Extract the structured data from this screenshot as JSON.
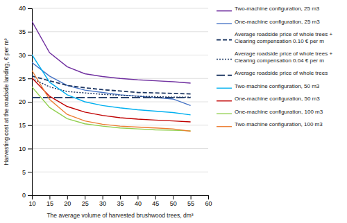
{
  "chart_data": {
    "type": "line",
    "xlabel": "The average volume of harvested brushwood trees, dm³",
    "ylabel": "Harvesting cost at the roadside landing, € per m³",
    "x": [
      10,
      15,
      20,
      25,
      30,
      35,
      40,
      45,
      50,
      55
    ],
    "series": [
      {
        "name": "Two-machine configuration, 25 m3",
        "color": "#7030A0",
        "line_style": "solid",
        "values": [
          37.2,
          30.5,
          27.5,
          26.0,
          25.4,
          25.0,
          24.7,
          24.5,
          24.3,
          24.0
        ]
      },
      {
        "name": "One-machine configuration, 25 m3",
        "color": "#4472C4",
        "line_style": "solid",
        "values": [
          28.4,
          25.5,
          23.5,
          22.5,
          22.0,
          21.5,
          21.2,
          20.9,
          20.6,
          19.2
        ]
      },
      {
        "name": "Average roadside price of whole trees +\nClearing compensation 0.10 € per m",
        "color": "#1F3864",
        "line_style": "dashed",
        "values": [
          25.5,
          24.5,
          23.5,
          23.0,
          22.6,
          22.3,
          22.0,
          21.9,
          21.8,
          21.7
        ]
      },
      {
        "name": "Average roadside price of whole trees +\nClearing compensation 0.04 € per m",
        "color": "#1F3864",
        "line_style": "dotted",
        "values": [
          25.0,
          23.2,
          22.2,
          21.9,
          21.6,
          21.4,
          21.2,
          21.1,
          21.0,
          21.0
        ]
      },
      {
        "name": "Average roadside price of whole trees",
        "color": "#1F3864",
        "line_style": "longdash",
        "values": [
          20.9,
          20.9,
          20.9,
          20.9,
          20.9,
          20.9,
          20.9,
          20.9,
          20.9,
          20.9
        ]
      },
      {
        "name": "Two-machine configuration, 50 m3",
        "color": "#00B0F0",
        "line_style": "solid",
        "values": [
          30.1,
          24.2,
          21.5,
          20.0,
          19.2,
          18.7,
          18.3,
          18.0,
          17.7,
          17.2
        ]
      },
      {
        "name": "One-machine configuration, 50 m3",
        "color": "#C00000",
        "line_style": "solid",
        "values": [
          25.1,
          21.2,
          19.0,
          17.8,
          17.1,
          16.6,
          16.3,
          16.1,
          15.9,
          15.7
        ]
      },
      {
        "name": "One-machine configuration, 100 m3",
        "color": "#92D050",
        "line_style": "solid",
        "values": [
          23.2,
          18.8,
          16.4,
          15.3,
          14.8,
          14.4,
          14.2,
          14.0,
          13.9,
          13.8
        ]
      },
      {
        "name": "Two-machine configuration, 100 m3",
        "color": "#ED7D31",
        "line_style": "solid",
        "values": [
          26.7,
          20.5,
          17.3,
          15.9,
          15.2,
          14.8,
          14.6,
          14.4,
          14.2,
          13.7
        ]
      }
    ],
    "xlim": [
      10,
      60
    ],
    "ylim": [
      0,
      40
    ],
    "xticks": [
      10,
      15,
      20,
      25,
      30,
      35,
      40,
      45,
      50,
      55,
      60
    ],
    "yticks": [
      0,
      5,
      10,
      15,
      20,
      25,
      30,
      35,
      40
    ],
    "grid": "y",
    "legend": "right"
  }
}
